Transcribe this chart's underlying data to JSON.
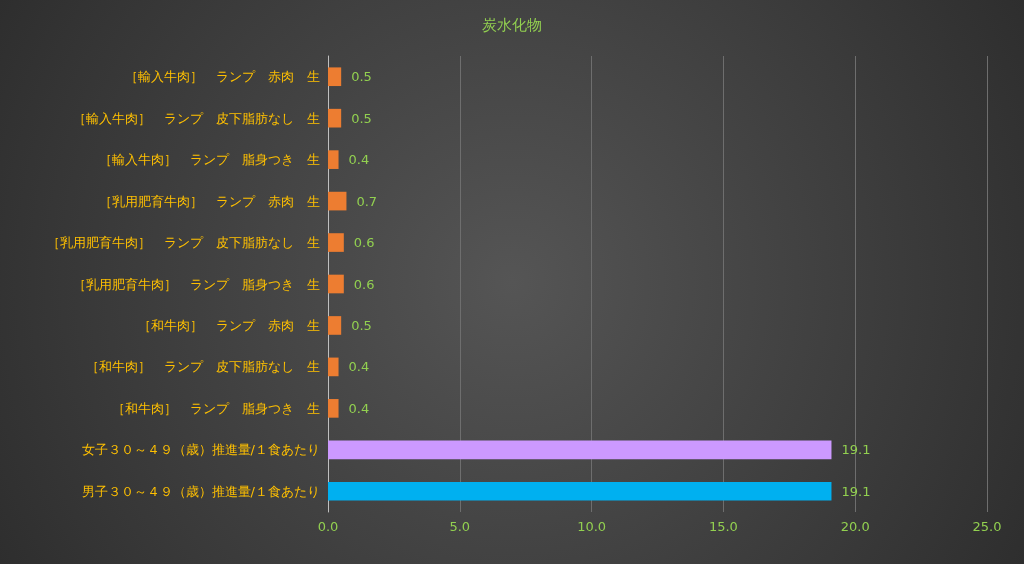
{
  "chart_data": {
    "type": "bar",
    "orientation": "horizontal",
    "title": "炭水化物",
    "categories": [
      "［輸入牛肉］　ランプ　赤肉　生",
      "［輸入牛肉］　ランプ　皮下脂肪なし　生",
      "［輸入牛肉］　ランプ　脂身つき　生",
      "［乳用肥育牛肉］　ランプ　赤肉　生",
      "［乳用肥育牛肉］　ランプ　皮下脂肪なし　生",
      "［乳用肥育牛肉］　ランプ　脂身つき　生",
      "［和牛肉］　ランプ　赤肉　生",
      "［和牛肉］　ランプ　皮下脂肪なし　生",
      "［和牛肉］　ランプ　脂身つき　生",
      "女子３０～４９（歳）推進量/１食あたり",
      "男子３０～４９（歳）推進量/１食あたり"
    ],
    "values": [
      0.5,
      0.5,
      0.4,
      0.7,
      0.6,
      0.6,
      0.5,
      0.4,
      0.4,
      19.1,
      19.1
    ],
    "colors": [
      "#ed7d31",
      "#ed7d31",
      "#ed7d31",
      "#ed7d31",
      "#ed7d31",
      "#ed7d31",
      "#ed7d31",
      "#ed7d31",
      "#ed7d31",
      "#cc99ff",
      "#00b0f0"
    ],
    "xlim": [
      0,
      25
    ],
    "xticks": [
      {
        "value": 0,
        "label": "0.0"
      },
      {
        "value": 5,
        "label": "5.0"
      },
      {
        "value": 10,
        "label": "10.0"
      },
      {
        "value": 15,
        "label": "15.0"
      },
      {
        "value": 20,
        "label": "20.0"
      },
      {
        "value": 25,
        "label": "25.0"
      }
    ],
    "grid": "x",
    "data_labels": true
  }
}
